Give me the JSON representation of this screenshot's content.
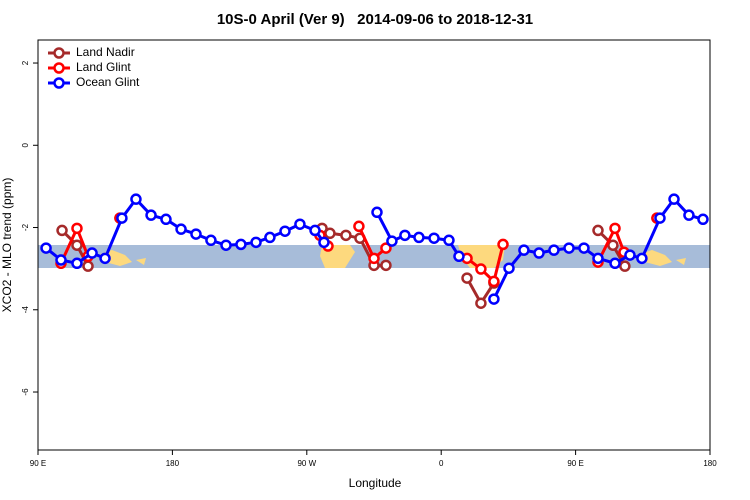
{
  "chart_data": {
    "type": "line",
    "title": "10S-0 April (Ver 9)   2014-09-06 to 2018-12-31",
    "x_label": "Longitude",
    "y_label": "XCO2 - MLO trend (ppm)",
    "xlim": [
      90,
      540
    ],
    "ylim": [
      -7.41,
      2.56
    ],
    "xticks": [
      {
        "value": 90,
        "label": "90 E"
      },
      180,
      {
        "value": 270,
        "label": "90 W"
      },
      {
        "value": 360,
        "label": "0"
      },
      {
        "value": 450,
        "label": "90 E"
      },
      {
        "value": 540,
        "label": "180"
      }
    ],
    "yticks": [
      2,
      0,
      -2,
      -4,
      -6
    ],
    "legend": "top-left",
    "series": [
      {
        "name": "Land Nadir",
        "color": "#a52a2a",
        "x": [
          106.1,
          116.1,
          123.5,
          null,
          144.9,
          null,
          280.2,
          285.5,
          296.2,
          305.6,
          315.0,
          323.0,
          null,
          377.3,
          386.6,
          395.3,
          null,
          465.0,
          475.0,
          483.0,
          null,
          504.5
        ],
        "values": [
          -2.07,
          -2.43,
          -2.94,
          null,
          -1.77,
          null,
          -2.02,
          -2.14,
          -2.19,
          -2.26,
          -2.92,
          -2.92,
          null,
          -3.23,
          -3.84,
          -3.35,
          null,
          -2.07,
          -2.43,
          -2.94,
          null,
          -1.77
        ]
      },
      {
        "name": "Land Glint",
        "color": "#ff0000",
        "x": [
          105.4,
          116.1,
          123.5,
          null,
          144.9,
          null,
          278.8,
          284.2,
          null,
          304.9,
          315.0,
          323.0,
          null,
          377.3,
          386.6,
          395.3,
          401.4,
          null,
          465.0,
          476.4,
          482.4,
          null,
          504.5
        ],
        "values": [
          -2.87,
          -2.02,
          -2.7,
          null,
          -1.77,
          null,
          -2.19,
          -2.45,
          null,
          -1.97,
          -2.75,
          -2.5,
          null,
          -2.75,
          -3.01,
          -3.31,
          -2.41,
          null,
          -2.84,
          -2.02,
          -2.6,
          null,
          -1.77
        ]
      },
      {
        "name": "Ocean Glint",
        "color": "#0000ff",
        "x": [
          95.4,
          105.4,
          116.1,
          126.2,
          134.9,
          146.2,
          155.6,
          165.7,
          175.7,
          185.8,
          195.8,
          205.8,
          215.9,
          225.9,
          236.0,
          245.3,
          255.4,
          265.4,
          275.5,
          281.5,
          null,
          317.0,
          327.0,
          335.7,
          345.1,
          355.2,
          365.2,
          371.9,
          null,
          395.3,
          405.4,
          415.4,
          425.5,
          435.5,
          445.6,
          455.6,
          465.0,
          476.4,
          486.4,
          494.4,
          506.5,
          515.9,
          525.9,
          535.3
        ],
        "values": [
          -2.5,
          -2.79,
          -2.87,
          -2.62,
          -2.75,
          -1.77,
          -1.31,
          -1.7,
          -1.8,
          -2.04,
          -2.16,
          -2.31,
          -2.43,
          -2.41,
          -2.36,
          -2.24,
          -2.09,
          -1.92,
          -2.07,
          -2.36,
          null,
          -1.63,
          -2.33,
          -2.19,
          -2.24,
          -2.26,
          -2.31,
          -2.7,
          null,
          -3.74,
          -2.99,
          -2.55,
          -2.62,
          -2.55,
          -2.5,
          -2.5,
          -2.75,
          -2.87,
          -2.67,
          -2.75,
          -1.77,
          -1.31,
          -1.7,
          -1.8
        ]
      }
    ]
  }
}
